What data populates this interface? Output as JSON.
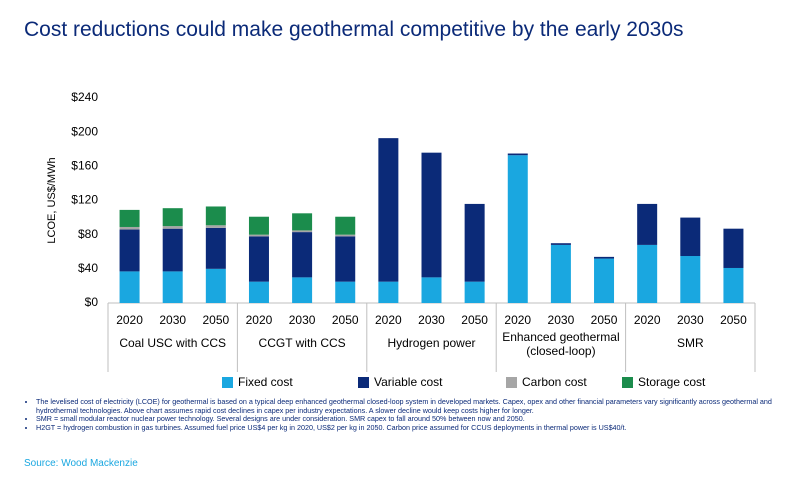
{
  "chart_data": {
    "type": "stacked-bar",
    "title": "Cost reductions could make geothermal competitive by the early 2030s",
    "y_label": "LCOE, US$/MWh",
    "categories": [
      "2020",
      "2030",
      "2050",
      "2020",
      "2030",
      "2050",
      "2020",
      "2030",
      "2050",
      "2020",
      "2030",
      "2050",
      "2020",
      "2030",
      "2050"
    ],
    "groups": [
      "Coal USC with CCS",
      "CCGT with CCS",
      "Hydrogen power",
      "Enhanced geothermal (closed-loop)",
      "SMR"
    ],
    "series": [
      {
        "name": "Fixed cost",
        "color": "#1aa7e0",
        "values": [
          37,
          37,
          40,
          25,
          30,
          25,
          25,
          30,
          25,
          173,
          68,
          52,
          68,
          55,
          41
        ]
      },
      {
        "name": "Variable cost",
        "color": "#0b2a78",
        "values": [
          49,
          50,
          48,
          53,
          53,
          53,
          168,
          146,
          91,
          2,
          2,
          2,
          48,
          45,
          46
        ]
      },
      {
        "name": "Carbon cost",
        "color": "#a6a6a6",
        "values": [
          3,
          3,
          3,
          2,
          2,
          2,
          null,
          null,
          null,
          null,
          null,
          null,
          null,
          null,
          null
        ]
      },
      {
        "name": "Storage cost",
        "color": "#1b8c4c",
        "values": [
          20,
          21,
          22,
          21,
          20,
          21,
          null,
          null,
          null,
          null,
          null,
          null,
          null,
          null,
          null
        ]
      }
    ],
    "ylim": [
      0,
      240
    ],
    "yticks": [
      {
        "value": 0,
        "label": "$0"
      },
      {
        "value": 40,
        "label": "$40"
      },
      {
        "value": 80,
        "label": "$80"
      },
      {
        "value": 120,
        "label": "$120"
      },
      {
        "value": 160,
        "label": "$160"
      },
      {
        "value": 200,
        "label": "$200"
      },
      {
        "value": 240,
        "label": "$240"
      }
    ],
    "notes": [
      "The levelised cost of electricity (LCOE) for geothermal is based on a typical deep enhanced geothermal closed-loop system in developed markets. Capex, opex and other financial parameters vary significantly across geothermal and hydrothermal technologies. Above chart assumes rapid cost declines in capex per industry expectations. A slower decline would keep costs higher for longer.",
      "SMR = small modular reactor nuclear power technology. Several designs are under consideration. SMR capex to fall around 50% between now and 2050.",
      "H2GT = hydrogen combustion in gas turbines. Assumed fuel price US$4 per kg in 2020, US$2 per kg in 2050. Carbon price assumed for CCUS deployments in thermal power is US$40/t."
    ],
    "source": "Source: Wood Mackenzie"
  }
}
